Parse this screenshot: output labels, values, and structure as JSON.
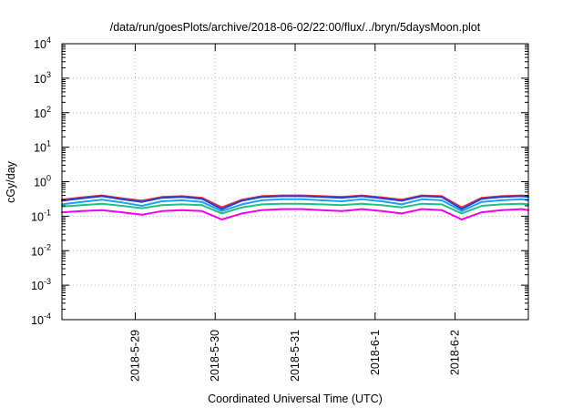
{
  "chart_data": {
    "type": "line",
    "title": "/data/run/goesPlots/archive/2018-06-02/22:00/flux/../bryn/5daysMoon.plot",
    "xlabel": "Coordinated Universal Time (UTC)",
    "ylabel": "cGy/day",
    "y_scale": "log",
    "ylim": [
      0.0001,
      10000
    ],
    "xlim": [
      "2018-05-28T02:00",
      "2018-06-02T22:00"
    ],
    "grid": true,
    "legend": "none",
    "x_tick_labels": [
      "2018-5-29",
      "2018-5-30",
      "2018-5-31",
      "2018-6-1",
      "2018-6-2"
    ],
    "x_ticks": [
      "2018-05-29T00:00",
      "2018-05-30T00:00",
      "2018-05-31T00:00",
      "2018-06-01T00:00",
      "2018-06-02T00:00"
    ],
    "y_ticks": [
      {
        "value": 0.0001,
        "base": "10",
        "exp": "-4"
      },
      {
        "value": 0.001,
        "base": "10",
        "exp": "-3"
      },
      {
        "value": 0.01,
        "base": "10",
        "exp": "-2"
      },
      {
        "value": 0.1,
        "base": "10",
        "exp": "-1"
      },
      {
        "value": 1,
        "base": "10",
        "exp": "0"
      },
      {
        "value": 10,
        "base": "10",
        "exp": "1"
      },
      {
        "value": 100,
        "base": "10",
        "exp": "2"
      },
      {
        "value": 1000,
        "base": "10",
        "exp": "3"
      },
      {
        "value": 10000,
        "base": "10",
        "exp": "4"
      }
    ],
    "x": [
      "2018-05-28T02:00",
      "2018-05-28T08:00",
      "2018-05-28T14:00",
      "2018-05-28T20:00",
      "2018-05-29T02:00",
      "2018-05-29T08:00",
      "2018-05-29T14:00",
      "2018-05-29T20:00",
      "2018-05-30T02:00",
      "2018-05-30T08:00",
      "2018-05-30T14:00",
      "2018-05-30T20:00",
      "2018-05-31T02:00",
      "2018-05-31T08:00",
      "2018-05-31T14:00",
      "2018-05-31T20:00",
      "2018-06-01T02:00",
      "2018-06-01T08:00",
      "2018-06-01T14:00",
      "2018-06-01T20:00",
      "2018-06-02T02:00",
      "2018-06-02T08:00",
      "2018-06-02T14:00",
      "2018-06-02T20:00",
      "2018-06-02T22:00"
    ],
    "series": [
      {
        "color": "#e03030",
        "values": [
          0.3,
          0.35,
          0.4,
          0.33,
          0.28,
          0.36,
          0.38,
          0.34,
          0.18,
          0.3,
          0.38,
          0.4,
          0.4,
          0.38,
          0.36,
          0.4,
          0.35,
          0.3,
          0.4,
          0.38,
          0.18,
          0.34,
          0.38,
          0.4,
          0.38
        ]
      },
      {
        "color": "#2040e0",
        "values": [
          0.28,
          0.33,
          0.38,
          0.31,
          0.26,
          0.34,
          0.36,
          0.32,
          0.16,
          0.28,
          0.36,
          0.38,
          0.38,
          0.36,
          0.34,
          0.38,
          0.33,
          0.28,
          0.38,
          0.36,
          0.16,
          0.32,
          0.36,
          0.38,
          0.36
        ]
      },
      {
        "color": "#20a0f0",
        "values": [
          0.22,
          0.26,
          0.3,
          0.25,
          0.2,
          0.27,
          0.29,
          0.26,
          0.14,
          0.22,
          0.29,
          0.31,
          0.31,
          0.29,
          0.27,
          0.31,
          0.27,
          0.22,
          0.31,
          0.29,
          0.14,
          0.26,
          0.29,
          0.31,
          0.29
        ]
      },
      {
        "color": "#20c080",
        "values": [
          0.19,
          0.21,
          0.23,
          0.2,
          0.17,
          0.21,
          0.22,
          0.21,
          0.12,
          0.18,
          0.22,
          0.23,
          0.23,
          0.22,
          0.21,
          0.23,
          0.21,
          0.18,
          0.23,
          0.22,
          0.12,
          0.2,
          0.22,
          0.23,
          0.22
        ]
      },
      {
        "color": "#f000f0",
        "values": [
          0.13,
          0.14,
          0.15,
          0.13,
          0.11,
          0.14,
          0.15,
          0.14,
          0.08,
          0.12,
          0.15,
          0.16,
          0.16,
          0.15,
          0.14,
          0.16,
          0.14,
          0.12,
          0.16,
          0.15,
          0.08,
          0.13,
          0.15,
          0.16,
          0.15
        ]
      }
    ]
  }
}
